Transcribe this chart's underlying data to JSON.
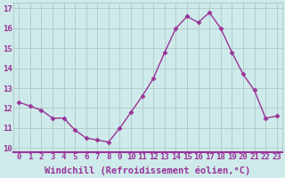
{
  "x": [
    0,
    1,
    2,
    3,
    4,
    5,
    6,
    7,
    8,
    9,
    10,
    11,
    12,
    13,
    14,
    15,
    16,
    17,
    18,
    19,
    20,
    21,
    22,
    23
  ],
  "y": [
    12.3,
    12.1,
    11.9,
    11.5,
    11.5,
    10.9,
    10.5,
    10.4,
    10.3,
    11.0,
    11.8,
    12.6,
    13.5,
    14.8,
    16.0,
    16.6,
    16.3,
    16.8,
    16.0,
    14.8,
    13.7,
    12.9,
    11.5,
    11.6
  ],
  "xlabel": "Windchill (Refroidissement éolien,°C)",
  "line_color": "#993399",
  "marker": "D",
  "markersize": 2.5,
  "linewidth": 1.0,
  "xlim": [
    -0.5,
    23.5
  ],
  "ylim": [
    9.8,
    17.3
  ],
  "yticks": [
    10,
    11,
    12,
    13,
    14,
    15,
    16,
    17
  ],
  "xticks": [
    0,
    1,
    2,
    3,
    4,
    5,
    6,
    7,
    8,
    9,
    10,
    11,
    12,
    13,
    14,
    15,
    16,
    17,
    18,
    19,
    20,
    21,
    22,
    23
  ],
  "bg_color": "#ceeaea",
  "grid_color": "#b0c8c8",
  "tick_label_fontsize": 6.5,
  "xlabel_fontsize": 7.5
}
